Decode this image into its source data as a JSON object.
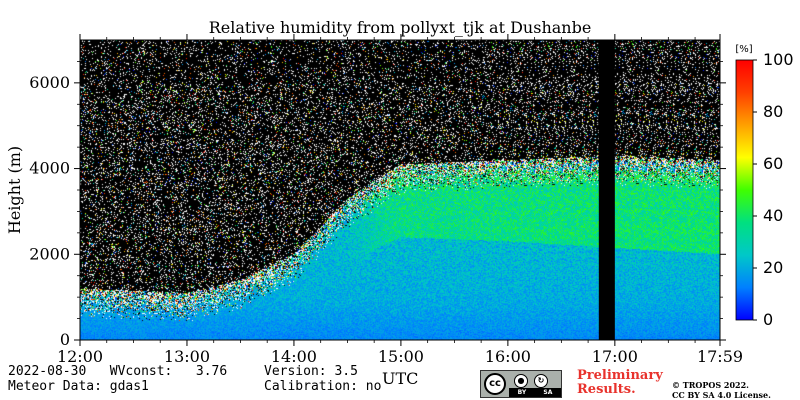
{
  "chart_data": {
    "type": "heatmap",
    "title": "Relative humidity from pollyxt_tjk at Dushanbe",
    "xlabel": "",
    "ylabel": "Height (m)",
    "x_unit_label": "UTC",
    "x_tick_labels": [
      "12:00",
      "13:00",
      "14:00",
      "15:00",
      "16:00",
      "17:00",
      "17:59"
    ],
    "x_tick_hours": [
      12.0,
      13.0,
      14.0,
      15.0,
      16.0,
      17.0,
      17.983
    ],
    "xlim_hours": [
      12.0,
      17.983
    ],
    "y_ticks": [
      0,
      2000,
      4000,
      6000
    ],
    "ylim": [
      0,
      7000
    ],
    "colorbar": {
      "label": "[%]",
      "ticks": [
        0,
        20,
        40,
        60,
        80,
        100
      ],
      "range": [
        0,
        100
      ],
      "colormap": [
        "#0000ff",
        "#0080ff",
        "#00c8c8",
        "#00e080",
        "#40ff00",
        "#ffff00",
        "#ffa000",
        "#ff4000",
        "#ff0000"
      ]
    },
    "no_data_gaps_hours": [
      [
        16.85,
        17.0
      ]
    ],
    "signal_top_height": [
      {
        "hour": 12.0,
        "height": 1200
      },
      {
        "hour": 13.0,
        "height": 1100
      },
      {
        "hour": 13.5,
        "height": 1400
      },
      {
        "hour": 14.0,
        "height": 2000
      },
      {
        "hour": 14.5,
        "height": 3300
      },
      {
        "hour": 15.0,
        "height": 4100
      },
      {
        "hour": 16.0,
        "height": 4200
      },
      {
        "hour": 17.0,
        "height": 4300
      },
      {
        "hour": 17.983,
        "height": 4200
      }
    ],
    "humid_layer": [
      {
        "hour": 14.5,
        "base": 1800,
        "top": 3200,
        "rh": 32
      },
      {
        "hour": 15.0,
        "base": 2400,
        "top": 4000,
        "rh": 35
      },
      {
        "hour": 16.0,
        "base": 2300,
        "top": 4000,
        "rh": 36
      },
      {
        "hour": 17.983,
        "base": 2000,
        "top": 3900,
        "rh": 38
      }
    ],
    "boundary_layer_rh": 14
  },
  "footer": {
    "date": "2022-08-30",
    "wvconst_label": "WVconst:",
    "wvconst_value": "3.76",
    "meteor_label": "Meteor Data:",
    "meteor_value": "gdas1",
    "version_label": "Version:",
    "version_value": "3.5",
    "calibration_label": "Calibration:",
    "calibration_value": "no",
    "license_badge": {
      "cc": "cc",
      "by": "BY",
      "sa": "SA"
    },
    "preliminary_line1": "Preliminary",
    "preliminary_line2": "Results.",
    "copyright_line1": "© TROPOS 2022.",
    "copyright_line2": "CC BY SA 4.0 License."
  }
}
